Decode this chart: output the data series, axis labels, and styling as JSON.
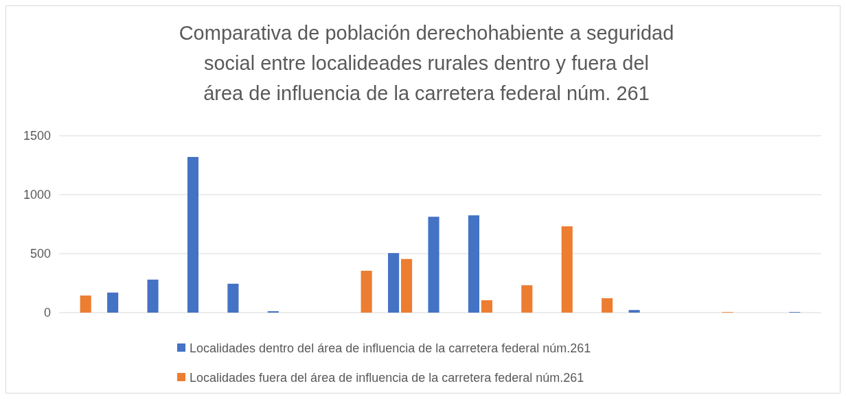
{
  "chart_data": {
    "type": "bar",
    "title": "Comparativa de población derechohabiente a seguridad social entre localideades rurales dentro y fuera del área de influencia de la carretera federal núm. 261",
    "categories": [
      null,
      null,
      null,
      null,
      null,
      null,
      null,
      null,
      null,
      null,
      null,
      null,
      null,
      null,
      null,
      null,
      null,
      null,
      null
    ],
    "series": [
      {
        "name": "Localidades dentro del área de influencia de la carretera federal núm.261",
        "color": "#4472c4",
        "values": [
          0,
          170,
          280,
          1320,
          245,
          12,
          0,
          0,
          505,
          813,
          825,
          0,
          0,
          0,
          22,
          0,
          0,
          0,
          5
        ]
      },
      {
        "name": "Localidades fuera del área de influencia de la carretera federal núm.261",
        "color": "#ed7d31",
        "values": [
          145,
          0,
          0,
          0,
          0,
          0,
          0,
          355,
          455,
          0,
          105,
          232,
          732,
          122,
          0,
          0,
          5,
          0,
          0
        ]
      }
    ],
    "ylim": [
      0,
      1500
    ],
    "yticks": [
      0,
      500,
      1000,
      1500
    ],
    "grid": "y",
    "legend": "bottom"
  }
}
